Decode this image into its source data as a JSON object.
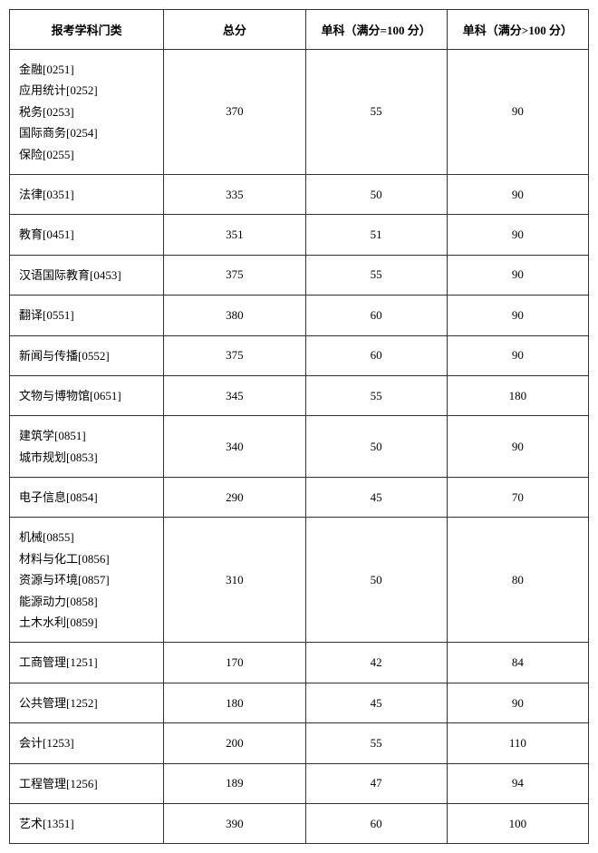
{
  "table": {
    "columns": [
      "报考学科门类",
      "总分",
      "单科（满分=100 分）",
      "单科（满分>100 分）"
    ],
    "rows": [
      {
        "category": [
          "金融[0251]",
          "应用统计[0252]",
          "税务[0253]",
          "国际商务[0254]",
          "保险[0255]"
        ],
        "total": "370",
        "single100": "55",
        "singleOver100": "90"
      },
      {
        "category": [
          "法律[0351]"
        ],
        "total": "335",
        "single100": "50",
        "singleOver100": "90"
      },
      {
        "category": [
          "教育[0451]"
        ],
        "total": "351",
        "single100": "51",
        "singleOver100": "90"
      },
      {
        "category": [
          "汉语国际教育[0453]"
        ],
        "total": "375",
        "single100": "55",
        "singleOver100": "90"
      },
      {
        "category": [
          "翻译[0551]"
        ],
        "total": "380",
        "single100": "60",
        "singleOver100": "90"
      },
      {
        "category": [
          "新闻与传播[0552]"
        ],
        "total": "375",
        "single100": "60",
        "singleOver100": "90"
      },
      {
        "category": [
          "文物与博物馆[0651]"
        ],
        "total": "345",
        "single100": "55",
        "singleOver100": "180"
      },
      {
        "category": [
          "建筑学[0851]",
          "城市规划[0853]"
        ],
        "total": "340",
        "single100": "50",
        "singleOver100": "90"
      },
      {
        "category": [
          "电子信息[0854]"
        ],
        "total": "290",
        "single100": "45",
        "singleOver100": "70"
      },
      {
        "category": [
          "机械[0855]",
          "材料与化工[0856]",
          "资源与环境[0857]",
          "能源动力[0858]",
          "土木水利[0859]"
        ],
        "total": "310",
        "single100": "50",
        "singleOver100": "80"
      },
      {
        "category": [
          "工商管理[1251]"
        ],
        "total": "170",
        "single100": "42",
        "singleOver100": "84"
      },
      {
        "category": [
          "公共管理[1252]"
        ],
        "total": "180",
        "single100": "45",
        "singleOver100": "90"
      },
      {
        "category": [
          "会计[1253]"
        ],
        "total": "200",
        "single100": "55",
        "singleOver100": "110"
      },
      {
        "category": [
          "工程管理[1256]"
        ],
        "total": "189",
        "single100": "47",
        "singleOver100": "94"
      },
      {
        "category": [
          "艺术[1351]"
        ],
        "total": "390",
        "single100": "60",
        "singleOver100": "100"
      }
    ]
  }
}
